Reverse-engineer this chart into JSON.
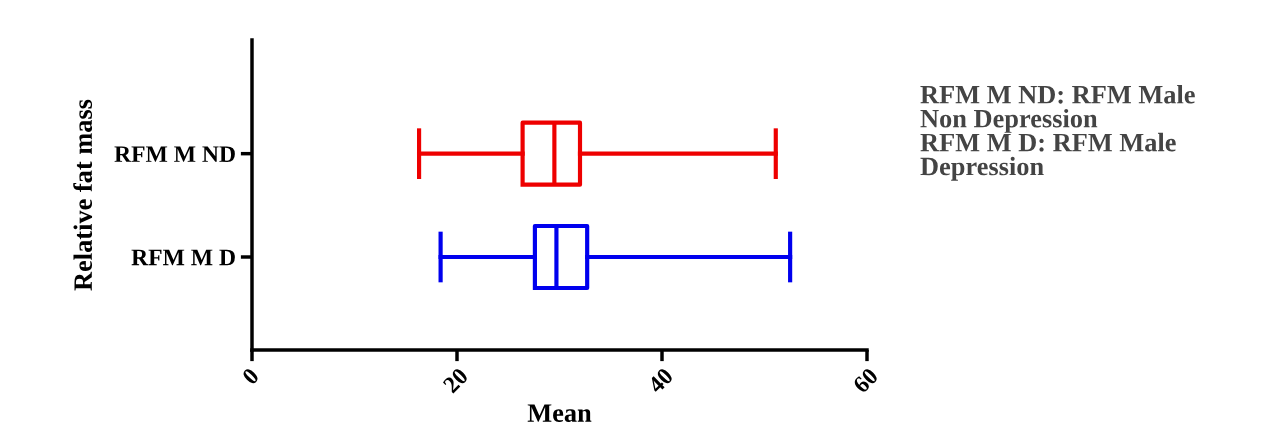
{
  "chart_data": {
    "type": "box",
    "orientation": "horizontal",
    "xlabel": "Mean",
    "ylabel": "Relative fat mass",
    "categories": [
      "RFM M ND",
      "RFM M D"
    ],
    "boxes": [
      {
        "low": 16.3,
        "q1": 26.4,
        "median": 29.5,
        "q3": 32.0,
        "high": 51.1
      },
      {
        "low": 18.4,
        "q1": 27.6,
        "median": 29.7,
        "q3": 32.7,
        "high": 52.5
      }
    ],
    "colors": [
      "#ee0000",
      "#0000ee"
    ],
    "xlim": [
      0,
      60
    ],
    "xticks": [
      0,
      20,
      40,
      60
    ],
    "grid": false,
    "annotations": [
      "RFM M ND: RFM Male\nNon Depression\nRFM M D: RFM Male\nDepression"
    ]
  }
}
